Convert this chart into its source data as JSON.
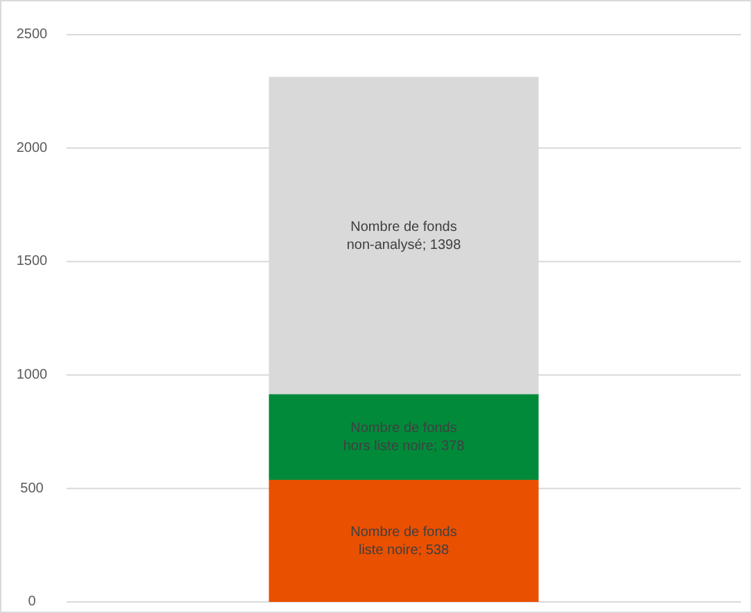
{
  "chart_data": {
    "type": "bar",
    "stacked": true,
    "categories": [
      null
    ],
    "series": [
      {
        "color": "#e95000",
        "values": [
          538
        ],
        "value_labels": [
          "Nombre de fonds liste noire; 538"
        ]
      },
      {
        "color": "#008a3a",
        "values": [
          378
        ],
        "value_labels": [
          "Nombre de fonds hors liste noire; 378"
        ]
      },
      {
        "color": "#d9d9d9",
        "values": [
          1398
        ],
        "value_labels": [
          "Nombre de fonds non-analysé; 1398"
        ]
      }
    ],
    "ylim": [
      0,
      2500
    ],
    "yticks": [
      0,
      500,
      1000,
      1500,
      2000,
      2500
    ],
    "grid": "y"
  }
}
